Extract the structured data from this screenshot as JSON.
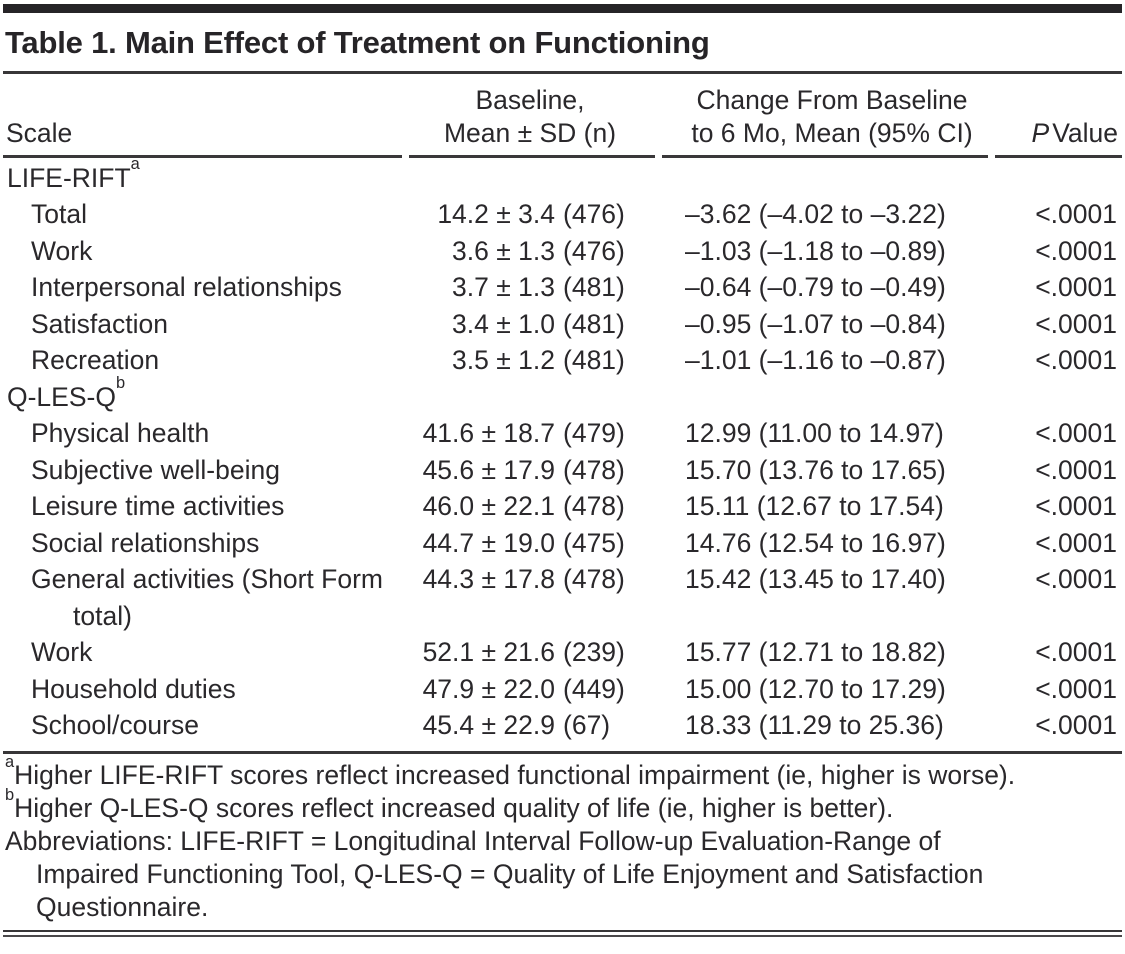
{
  "title": "Table 1. Main Effect of Treatment on Functioning",
  "header": {
    "scale": "Scale",
    "baseline_line1": "Baseline,",
    "baseline_line2": "Mean ± SD (n)",
    "change_line1": "Change From Baseline",
    "change_line2": "to 6 Mo, Mean (95% CI)",
    "p_italic": "P",
    "p_rest": "Value"
  },
  "table": {
    "rows": [
      {
        "type": "section",
        "label": "LIFE-RIFT",
        "sup": "a"
      },
      {
        "type": "data",
        "label": "Total",
        "mean_sd": "14.2 ± 3.4",
        "n": "(476)",
        "change": "–3.62 (–4.02 to –3.22)",
        "p": "<.0001"
      },
      {
        "type": "data",
        "label": "Work",
        "mean_sd": "3.6 ± 1.3",
        "n": "(476)",
        "change": "–1.03 (–1.18 to –0.89)",
        "p": "<.0001"
      },
      {
        "type": "data",
        "label": "Interpersonal relationships",
        "mean_sd": "3.7 ± 1.3",
        "n": "(481)",
        "change": "–0.64 (–0.79 to –0.49)",
        "p": "<.0001"
      },
      {
        "type": "data",
        "label": "Satisfaction",
        "mean_sd": "3.4 ± 1.0",
        "n": "(481)",
        "change": "–0.95 (–1.07 to –0.84)",
        "p": "<.0001"
      },
      {
        "type": "data",
        "label": "Recreation",
        "mean_sd": "3.5 ± 1.2",
        "n": "(481)",
        "change": "–1.01 (–1.16 to –0.87)",
        "p": "<.0001"
      },
      {
        "type": "section",
        "label": "Q-LES-Q",
        "sup": "b"
      },
      {
        "type": "data",
        "label": "Physical health",
        "mean_sd": "41.6 ± 18.7",
        "n": "(479)",
        "change": "12.99 (11.00 to 14.97)",
        "p": "<.0001"
      },
      {
        "type": "data",
        "label": "Subjective well-being",
        "mean_sd": "45.6 ± 17.9",
        "n": "(478)",
        "change": "15.70 (13.76 to 17.65)",
        "p": "<.0001"
      },
      {
        "type": "data",
        "label": "Leisure time activities",
        "mean_sd": "46.0 ± 22.1",
        "n": "(478)",
        "change": "15.11 (12.67 to 17.54)",
        "p": "<.0001"
      },
      {
        "type": "data",
        "label": "Social relationships",
        "mean_sd": "44.7 ± 19.0",
        "n": "(475)",
        "change": "14.76 (12.54 to 16.97)",
        "p": "<.0001"
      },
      {
        "type": "data",
        "label": "General activities (Short Form total)",
        "mean_sd": "44.3 ± 17.8",
        "n": "(478)",
        "change": "15.42 (13.45 to 17.40)",
        "p": "<.0001"
      },
      {
        "type": "data",
        "label": "Work",
        "mean_sd": "52.1 ± 21.6",
        "n": "(239)",
        "change": "15.77 (12.71 to 18.82)",
        "p": "<.0001"
      },
      {
        "type": "data",
        "label": "Household duties",
        "mean_sd": "47.9 ± 22.0",
        "n": "(449)",
        "change": "15.00 (12.70 to 17.29)",
        "p": "<.0001"
      },
      {
        "type": "data",
        "label": "School/course",
        "mean_sd": "45.4 ± 22.9",
        "n": "(67)",
        "change": "18.33 (11.29 to 25.36)",
        "p": "<.0001"
      }
    ]
  },
  "footnotes": {
    "a_sup": "a",
    "a_text": "Higher LIFE-RIFT scores reflect increased functional impairment (ie, higher is worse).",
    "b_sup": "b",
    "b_text": "Higher Q-LES-Q scores reflect increased quality of life (ie, higher is better).",
    "abbr_line1": "Abbreviations: LIFE-RIFT = Longitudinal Interval Follow-up Evaluation-Range of",
    "abbr_line2": "Impaired Functioning Tool, Q-LES-Q = Quality of Life Enjoyment and Satisfaction",
    "abbr_line3": "Questionnaire."
  },
  "colors": {
    "text": "#2a282b",
    "rule": "#383638",
    "background": "#ffffff"
  }
}
